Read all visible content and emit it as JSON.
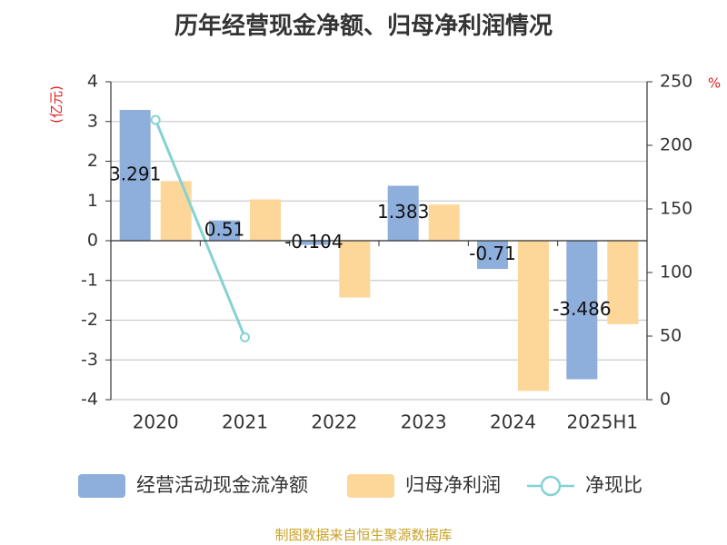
{
  "chart_data": {
    "type": "bar",
    "title": "历年经营现金净额、归母净利润情况",
    "categories": [
      "2020",
      "2021",
      "2022",
      "2023",
      "2024",
      "2025H1"
    ],
    "y_left_unit": "(亿元)",
    "y_right_unit": "%",
    "y_left_ticks": [
      "4",
      "3",
      "2",
      "1",
      "0",
      "-1",
      "-2",
      "-3",
      "-4"
    ],
    "y_right_ticks": [
      "250",
      "200",
      "150",
      "100",
      "50",
      "0"
    ],
    "ylim": [
      -4,
      4
    ],
    "ylim_right": [
      0,
      250
    ],
    "grid": true,
    "legend_position": "bottom",
    "series": [
      {
        "name": "经营活动现金流净额",
        "type": "bar",
        "axis": "left",
        "color": "#8eaedb",
        "values": [
          3.291,
          0.51,
          -0.104,
          1.383,
          -0.71,
          -3.486
        ],
        "labels": [
          "3.291",
          "0.51",
          "-0.104",
          "1.383",
          "-0.71",
          "-3.486"
        ]
      },
      {
        "name": "归母净利润",
        "type": "bar",
        "axis": "left",
        "color": "#fdd79a",
        "values": [
          1.5,
          1.04,
          -1.43,
          0.91,
          -3.78,
          -2.1
        ]
      },
      {
        "name": "净现比",
        "type": "line",
        "axis": "right",
        "color": "#86d2d2",
        "values": [
          220,
          49,
          null,
          null,
          null,
          null
        ]
      }
    ],
    "source": "制图数据来自恒生聚源数据库"
  }
}
